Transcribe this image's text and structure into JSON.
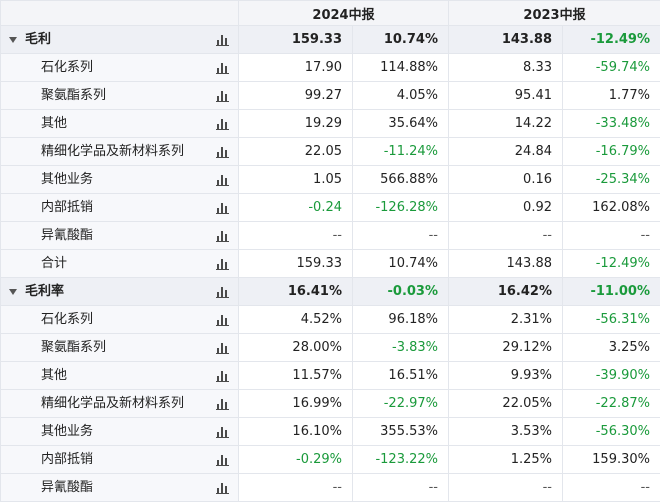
{
  "header": {
    "period1": "2024中报",
    "period2": "2023中报"
  },
  "rows": [
    {
      "type": "group",
      "label": "毛利",
      "v1": "159.33",
      "g1": "10.74%",
      "v2": "143.88",
      "g2": "-12.49%"
    },
    {
      "type": "child",
      "label": "石化系列",
      "v1": "17.90",
      "g1": "114.88%",
      "v2": "8.33",
      "g2": "-59.74%"
    },
    {
      "type": "child",
      "label": "聚氨酯系列",
      "v1": "99.27",
      "g1": "4.05%",
      "v2": "95.41",
      "g2": "1.77%"
    },
    {
      "type": "child",
      "label": "其他",
      "v1": "19.29",
      "g1": "35.64%",
      "v2": "14.22",
      "g2": "-33.48%"
    },
    {
      "type": "child",
      "label": "精细化学品及新材料系列",
      "v1": "22.05",
      "g1": "-11.24%",
      "v2": "24.84",
      "g2": "-16.79%"
    },
    {
      "type": "child",
      "label": "其他业务",
      "v1": "1.05",
      "g1": "566.88%",
      "v2": "0.16",
      "g2": "-25.34%"
    },
    {
      "type": "child",
      "label": "内部抵销",
      "v1": "-0.24",
      "g1": "-126.28%",
      "v2": "0.92",
      "g2": "162.08%"
    },
    {
      "type": "child",
      "label": "异氰酸酯",
      "v1": "--",
      "g1": "--",
      "v2": "--",
      "g2": "--"
    },
    {
      "type": "child",
      "label": "合计",
      "v1": "159.33",
      "g1": "10.74%",
      "v2": "143.88",
      "g2": "-12.49%"
    },
    {
      "type": "group",
      "label": "毛利率",
      "v1": "16.41%",
      "g1": "-0.03%",
      "v2": "16.42%",
      "g2": "-11.00%"
    },
    {
      "type": "child",
      "label": "石化系列",
      "v1": "4.52%",
      "g1": "96.18%",
      "v2": "2.31%",
      "g2": "-56.31%"
    },
    {
      "type": "child",
      "label": "聚氨酯系列",
      "v1": "28.00%",
      "g1": "-3.83%",
      "v2": "29.12%",
      "g2": "3.25%"
    },
    {
      "type": "child",
      "label": "其他",
      "v1": "11.57%",
      "g1": "16.51%",
      "v2": "9.93%",
      "g2": "-39.90%"
    },
    {
      "type": "child",
      "label": "精细化学品及新材料系列",
      "v1": "16.99%",
      "g1": "-22.97%",
      "v2": "22.05%",
      "g2": "-22.87%"
    },
    {
      "type": "child",
      "label": "其他业务",
      "v1": "16.10%",
      "g1": "355.53%",
      "v2": "3.53%",
      "g2": "-56.30%"
    },
    {
      "type": "child",
      "label": "内部抵销",
      "v1": "-0.29%",
      "g1": "-123.22%",
      "v2": "1.25%",
      "g2": "159.30%"
    },
    {
      "type": "child",
      "label": "异氰酸酯",
      "v1": "--",
      "g1": "--",
      "v2": "--",
      "g2": "--"
    }
  ],
  "icons": {
    "expand": "caret-down-icon",
    "chart": "bar-chart-icon"
  },
  "colors": {
    "negative": "#1a9a3b",
    "header_bg": "#f4f5f8",
    "group_bg": "#eef0f5"
  }
}
